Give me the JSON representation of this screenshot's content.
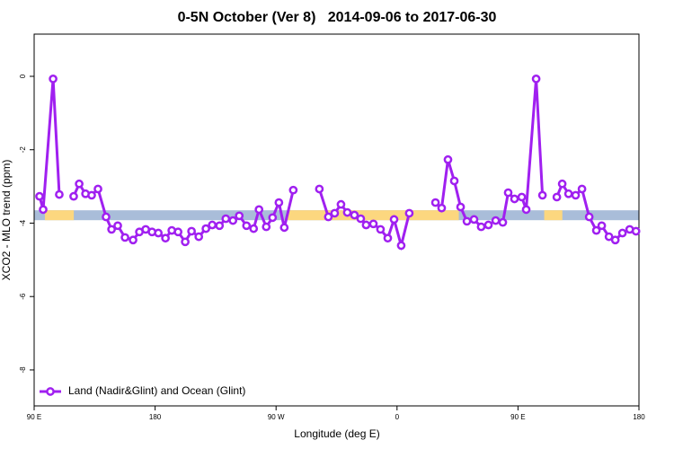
{
  "chart_data": {
    "type": "line",
    "title": "0-5N October (Ver 8)   2014-09-06 to 2017-06-30",
    "x_label": "Longitude (deg E)",
    "y_label": "XCO2 - MLO trend (ppm)",
    "xlim": [
      90,
      540
    ],
    "ylim": [
      -8.98,
      1.15
    ],
    "xticks": [
      {
        "value": 90,
        "label": "90 E"
      },
      {
        "value": 180,
        "label": "180"
      },
      {
        "value": 270,
        "label": "90 W"
      },
      {
        "value": 360,
        "label": "0"
      },
      {
        "value": 450,
        "label": "90 E"
      },
      {
        "value": 540,
        "label": "180"
      }
    ],
    "yticks": [
      0,
      -2,
      -4,
      -6,
      -8
    ],
    "legend": "bottom-left",
    "band": {
      "ylim": [
        -3.92,
        -3.65
      ],
      "color": "#a9bdd9",
      "segments": [
        {
          "xlim": [
            98,
            119.5
          ],
          "color": "#fcd77f"
        },
        {
          "xlim": [
            278.7,
            406
          ],
          "color": "#fcd77f"
        },
        {
          "xlim": [
            469.5,
            483
          ],
          "color": "#fcd77f"
        }
      ]
    },
    "series": [
      {
        "name": "Land (Nadir&Glint) and Ocean (Glint)",
        "color": "#a020f0",
        "x": [
          94.0,
          96.7,
          104.1,
          108.7,
          114,
          119.4,
          123.5,
          128.2,
          132.8,
          137.5,
          143.5,
          147.6,
          152.2,
          157.6,
          163.6,
          168.3,
          173.0,
          177.7,
          182.4,
          187.7,
          192.4,
          197.1,
          202.4,
          207.1,
          212.5,
          217.8,
          222.5,
          227.9,
          232.6,
          237.9,
          242.6,
          248.0,
          253.3,
          257.3,
          262.7,
          267.4,
          272.1,
          276.1,
          282.8,
          292,
          302.2,
          308.9,
          313.6,
          318.3,
          323.0,
          328.3,
          333.0,
          337.0,
          342.4,
          347.7,
          353.1,
          357.8,
          363.1,
          369.1,
          379,
          388.6,
          393.2,
          397.9,
          402.6,
          407.3,
          412.0,
          417.3,
          422.6,
          428.0,
          433.4,
          438.7,
          442.7,
          447.4,
          452.8,
          456.1,
          463.5,
          468.2,
          473,
          478.9,
          482.9,
          487.6,
          492.9,
          497.6,
          503.0,
          508.3,
          512.3,
          517.7,
          522.4,
          527.7,
          533.1,
          537.8
        ],
        "values": [
          -3.27,
          -3.63,
          -0.07,
          -3.22,
          null,
          -3.27,
          -2.93,
          -3.2,
          -3.24,
          -3.07,
          -3.83,
          -4.17,
          -4.07,
          -4.39,
          -4.46,
          -4.24,
          -4.17,
          -4.24,
          -4.27,
          -4.41,
          -4.2,
          -4.24,
          -4.51,
          -4.22,
          -4.37,
          -4.15,
          -4.05,
          -4.07,
          -3.88,
          -3.93,
          -3.8,
          -4.07,
          -4.15,
          -3.63,
          -4.1,
          -3.85,
          -3.44,
          -4.12,
          -3.1,
          null,
          -3.07,
          -3.83,
          -3.73,
          -3.49,
          -3.71,
          -3.78,
          -3.88,
          -4.05,
          -4.02,
          -4.17,
          -4.41,
          -3.9,
          -4.61,
          -3.73,
          null,
          -3.44,
          -3.59,
          -2.27,
          -2.85,
          -3.56,
          -3.95,
          -3.9,
          -4.1,
          -4.05,
          -3.93,
          -3.98,
          -3.17,
          -3.34,
          -3.29,
          -3.63,
          -0.07,
          -3.24,
          null,
          -3.29,
          -2.93,
          -3.2,
          -3.24,
          -3.07,
          -3.83,
          -4.2,
          -4.07,
          -4.37,
          -4.46,
          -4.27,
          -4.17,
          -4.22
        ]
      }
    ]
  }
}
